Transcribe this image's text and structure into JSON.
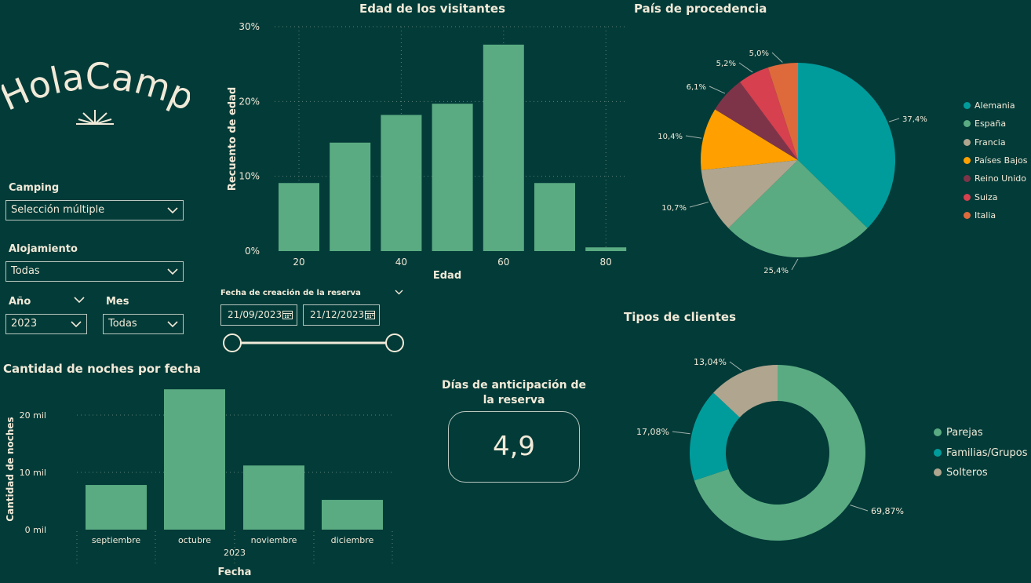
{
  "brand": {
    "name": "HolaCamp"
  },
  "filters": {
    "camping": {
      "label": "Camping",
      "value": "Selección múltiple"
    },
    "alojamiento": {
      "label": "Alojamiento",
      "value": "Todas"
    },
    "anio": {
      "label": "Año",
      "value": "2023"
    },
    "mes": {
      "label": "Mes",
      "value": "Todas"
    },
    "fecha": {
      "label": "Fecha de creación de la reserva",
      "start": "21/09/2023",
      "end": "21/12/2023"
    }
  },
  "kpi": {
    "title_line1": "Días de anticipación de",
    "title_line2": "la reserva",
    "value": "4,9"
  },
  "colors": {
    "green": "#5aab82",
    "teal": "#009c9c",
    "beige": "#b0a58f",
    "orange": "#ffa000",
    "maroon": "#7e3448",
    "red": "#d6404f",
    "coral": "#de6a3c"
  },
  "chart_data": [
    {
      "id": "edad",
      "type": "bar",
      "title": "Edad de los visitantes",
      "xlabel": "Edad",
      "ylabel": "Recuento de edad",
      "x": [
        20,
        30,
        40,
        50,
        60,
        70,
        80
      ],
      "values": [
        9.1,
        14.5,
        18.2,
        19.7,
        27.6,
        9.1,
        0.5
      ],
      "ylim": [
        0,
        30
      ],
      "yticks": [
        "0%",
        "10%",
        "20%",
        "30%"
      ],
      "xticks": [
        "20",
        "40",
        "60",
        "80"
      ]
    },
    {
      "id": "pais",
      "type": "pie",
      "title": "País de procedencia",
      "labels": [
        "Alemania",
        "España",
        "Francia",
        "Países Bajos",
        "Reino Unido",
        "Suiza",
        "Italia"
      ],
      "values": [
        37.4,
        25.4,
        10.7,
        10.4,
        6.1,
        5.2,
        5.0
      ],
      "value_labels": [
        "37,4%",
        "25,4%",
        "10,7%",
        "10,4%",
        "6,1%",
        "5,2%",
        "5,0%"
      ]
    },
    {
      "id": "noches",
      "type": "bar",
      "title": "Cantidad de noches por fecha",
      "xlabel": "Fecha",
      "ylabel": "Cantidad de noches",
      "year_label": "2023",
      "categories": [
        "septiembre",
        "octubre",
        "noviembre",
        "diciembre"
      ],
      "values": [
        7.8,
        24.5,
        11.2,
        5.2
      ],
      "ylim": [
        0,
        25
      ],
      "yticks": [
        "0 mil",
        "10 mil",
        "20 mil"
      ]
    },
    {
      "id": "clientes",
      "type": "pie",
      "title": "Tipos de clientes",
      "labels": [
        "Parejas",
        "Familias/Grupos",
        "Solteros"
      ],
      "values": [
        69.87,
        17.08,
        13.04
      ],
      "value_labels": [
        "69,87%",
        "17,08%",
        "13,04%"
      ]
    }
  ]
}
